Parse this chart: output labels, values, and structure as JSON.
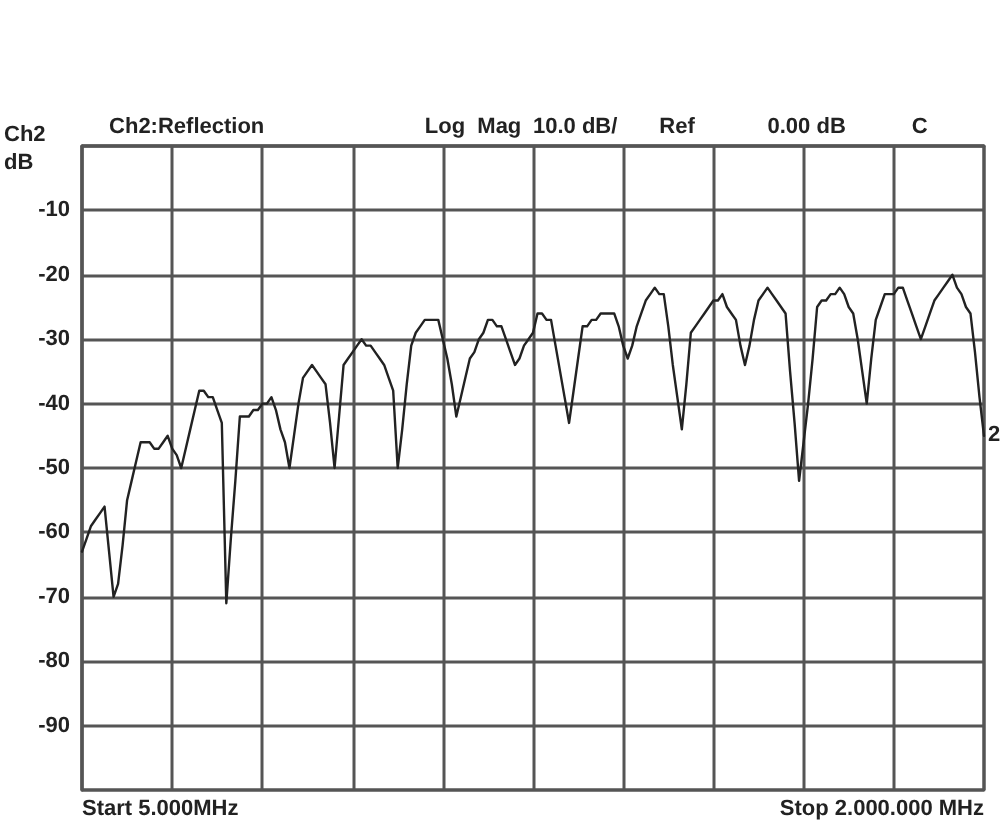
{
  "chart_data": {
    "type": "line",
    "ylabel": "dB",
    "annotations": [
      "Ch2:Reflection",
      "Log  Mag",
      "10.0 dB/",
      "Ref",
      "0.00 dB",
      "C",
      "Ch2",
      "2",
      "Start 5.000MHz",
      "Stop 2.000.000 MHz"
    ],
    "categories": [
      null,
      null,
      null,
      null,
      null,
      null,
      null,
      null,
      null,
      null,
      null,
      null,
      null,
      null,
      null,
      null,
      null,
      null,
      null,
      null,
      null,
      null,
      null,
      null,
      null,
      null,
      null,
      null,
      null,
      null,
      null,
      null,
      null,
      null,
      null,
      null,
      null,
      null,
      null,
      null,
      null,
      null,
      null,
      null,
      null,
      null,
      null,
      null,
      null,
      null,
      null,
      null,
      null,
      null,
      null,
      null,
      null,
      null,
      null,
      null,
      null,
      null,
      null,
      null,
      null,
      null,
      null,
      null,
      null,
      null,
      null,
      null,
      null,
      null,
      null,
      null,
      null,
      null,
      null,
      null,
      null,
      null,
      null,
      null,
      null,
      null,
      null,
      null,
      null,
      null,
      null,
      null,
      null,
      null,
      null,
      null,
      null,
      null,
      null,
      null,
      null,
      null,
      null,
      null,
      null,
      null,
      null,
      null,
      null,
      null,
      null,
      null,
      null,
      null,
      null,
      null,
      null,
      null,
      null,
      null,
      null,
      null,
      null,
      null,
      null,
      null,
      null,
      null,
      null,
      null,
      null,
      null,
      null,
      null,
      null,
      null,
      null,
      null,
      null,
      null,
      null,
      null,
      null,
      null,
      null,
      null,
      null,
      null,
      null,
      null,
      null,
      null,
      null,
      null,
      null,
      null,
      null,
      null,
      null,
      null,
      null,
      null,
      null,
      null,
      null,
      null,
      null,
      null,
      null,
      null,
      null,
      null,
      null,
      null,
      null,
      null,
      null,
      null,
      null,
      null,
      null,
      null,
      null,
      null,
      null,
      null,
      null,
      null,
      null,
      null,
      null,
      null,
      null,
      null,
      null,
      null,
      null,
      null,
      null,
      null,
      null
    ],
    "series": [
      {
        "color": "#222222",
        "values": [
          -63,
          -61,
          -59,
          -58,
          -57,
          -56,
          -63,
          -70,
          -68,
          -62,
          -55,
          -52,
          -49,
          -46,
          -46,
          -46,
          -47,
          -47,
          -46,
          -45,
          -47,
          -48,
          -50,
          -47,
          -44,
          -41,
          -38,
          -38,
          -39,
          -39,
          -41,
          -43,
          -71,
          -61,
          -52,
          -42,
          -42,
          -42,
          -41,
          -41,
          -40,
          -40,
          -39,
          -41,
          -44,
          -46,
          -50,
          -45,
          -40,
          -36,
          -35,
          -34,
          -35,
          -36,
          -37,
          -43,
          -50,
          -42,
          -34,
          -33,
          -32,
          -31,
          -30,
          -31,
          -31,
          -32,
          -33,
          -34,
          -36,
          -38,
          -50,
          -44,
          -37,
          -31,
          -29,
          -28,
          -27,
          -27,
          -27,
          -27,
          -30,
          -33,
          -37,
          -42,
          -39,
          -36,
          -33,
          -32,
          -30,
          -29,
          -27,
          -27,
          -28,
          -28,
          -30,
          -32,
          -34,
          -33,
          -31,
          -30,
          -29,
          -26,
          -26,
          -27,
          -27,
          -31,
          -35,
          -39,
          -43,
          -38,
          -33,
          -28,
          -28,
          -27,
          -27,
          -26,
          -26,
          -26,
          -26,
          -28,
          -31,
          -33,
          -31,
          -28,
          -26,
          -24,
          -23,
          -22,
          -23,
          -23,
          -28,
          -34,
          -39,
          -44,
          -37,
          -29,
          -28,
          -27,
          -26,
          -25,
          -24,
          -24,
          -23,
          -25,
          -26,
          -27,
          -31,
          -34,
          -31,
          -27,
          -24,
          -23,
          -22,
          -23,
          -24,
          -25,
          -26,
          -35,
          -43,
          -52,
          -46,
          -40,
          -33,
          -25,
          -24,
          -24,
          -23,
          -23,
          -22,
          -23,
          -25,
          -26,
          -30,
          -35,
          -40,
          -33,
          -27,
          -25,
          -23,
          -23,
          -23,
          -22,
          -22,
          -24,
          -26,
          -28,
          -30,
          -28,
          -26,
          -24,
          -23,
          -22,
          -21,
          -20,
          -22,
          -23,
          -25,
          -26,
          -32,
          -39,
          -45
        ]
      }
    ],
    "ylim": [
      -100,
      0
    ],
    "yticks": [
      {
        "value": 0,
        "label": null
      },
      -10,
      -20,
      -30,
      -40,
      -50,
      -60,
      -70,
      -80,
      -90,
      {
        "value": -100,
        "label": null
      }
    ],
    "grid": true,
    "marker": "none",
    "line_style": "solid"
  }
}
